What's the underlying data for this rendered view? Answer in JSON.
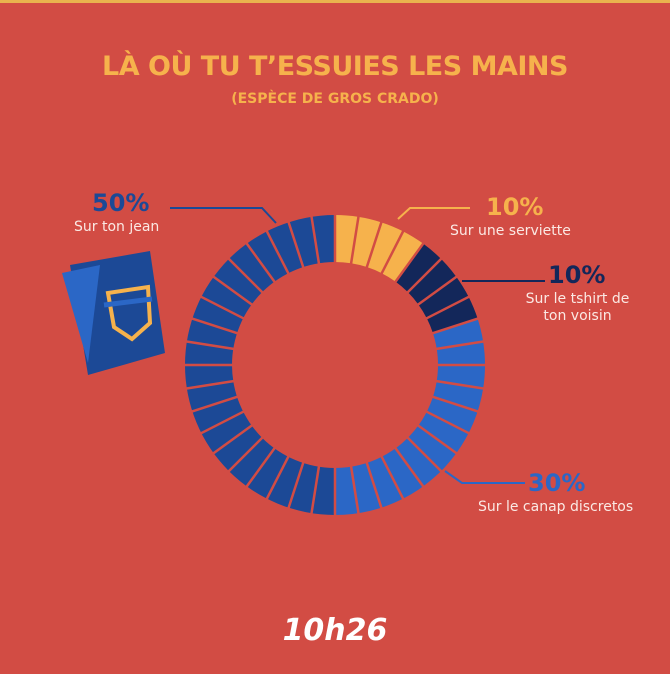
{
  "chart_data": {
    "type": "donut",
    "title": "LÀ OÙ TU T’ESSUIES LES MAINS",
    "subtitle": "(ESPÈCE DE GROS CRADO)",
    "categories": [
      "Sur une serviette",
      "Sur le tshirt de ton voisin",
      "Sur le canap discretos",
      "Sur ton jean"
    ],
    "values": [
      10,
      10,
      30,
      50
    ],
    "value_labels": [
      "10%",
      "10%",
      "30%",
      "50%"
    ],
    "colors": [
      "#f6b24c",
      "#13275a",
      "#2b67c6",
      "#1c4996"
    ]
  },
  "brand": "10h26"
}
